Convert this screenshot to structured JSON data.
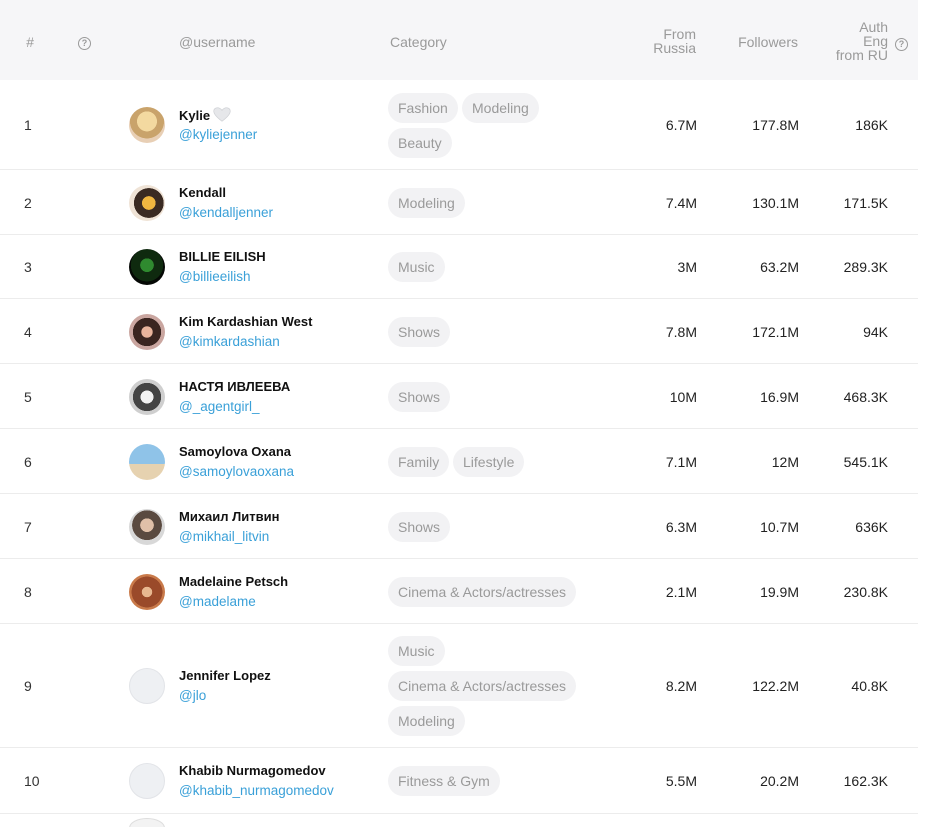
{
  "header": {
    "num": "#",
    "username": "@username",
    "category": "Category",
    "from_line1": "From",
    "from_line2": "Russia",
    "followers": "Followers",
    "auth_line1": "Auth",
    "auth_line2": "Eng",
    "auth_line3": "from RU",
    "help_glyph": "?"
  },
  "rows": [
    {
      "num": "1",
      "name": "Kylie",
      "handle": "@kyliejenner",
      "categories": [
        "Fashion",
        "Modeling",
        "Beauty"
      ],
      "from_russia": "6.7M",
      "followers": "177.8M",
      "auth_eng": "186K"
    },
    {
      "num": "2",
      "name": "Kendall",
      "handle": "@kendalljenner",
      "categories": [
        "Modeling"
      ],
      "from_russia": "7.4M",
      "followers": "130.1M",
      "auth_eng": "171.5K"
    },
    {
      "num": "3",
      "name": "BILLIE EILISH",
      "handle": "@billieeilish",
      "categories": [
        "Music"
      ],
      "from_russia": "3M",
      "followers": "63.2M",
      "auth_eng": "289.3K"
    },
    {
      "num": "4",
      "name": "Kim Kardashian West",
      "handle": "@kimkardashian",
      "categories": [
        "Shows"
      ],
      "from_russia": "7.8M",
      "followers": "172.1M",
      "auth_eng": "94K"
    },
    {
      "num": "5",
      "name": "НАСТЯ ИВЛЕЕВА",
      "handle": "@_agentgirl_",
      "categories": [
        "Shows"
      ],
      "from_russia": "10M",
      "followers": "16.9M",
      "auth_eng": "468.3K"
    },
    {
      "num": "6",
      "name": "Samoylova Oxana",
      "handle": "@samoylovaoxana",
      "categories": [
        "Family",
        "Lifestyle"
      ],
      "from_russia": "7.1M",
      "followers": "12M",
      "auth_eng": "545.1K"
    },
    {
      "num": "7",
      "name": "Михаил Литвин",
      "handle": "@mikhail_litvin",
      "categories": [
        "Shows"
      ],
      "from_russia": "6.3M",
      "followers": "10.7M",
      "auth_eng": "636K"
    },
    {
      "num": "8",
      "name": "Madelaine Petsch",
      "handle": "@madelame",
      "categories": [
        "Cinema & Actors/actresses"
      ],
      "from_russia": "2.1M",
      "followers": "19.9M",
      "auth_eng": "230.8K"
    },
    {
      "num": "9",
      "name": "Jennifer Lopez",
      "handle": "@jlo",
      "categories": [
        "Music",
        "Cinema & Actors/actresses",
        "Modeling"
      ],
      "from_russia": "8.2M",
      "followers": "122.2M",
      "auth_eng": "40.8K"
    },
    {
      "num": "10",
      "name": "Khabib Nurmagomedov",
      "handle": "@khabib_nurmagomedov",
      "categories": [
        "Fitness & Gym"
      ],
      "from_russia": "5.5M",
      "followers": "20.2M",
      "auth_eng": "162.3K"
    }
  ],
  "colors": {
    "handle": "#3aa0d8",
    "tag_bg": "#f2f2f4",
    "header_bg": "#f6f6f8"
  }
}
